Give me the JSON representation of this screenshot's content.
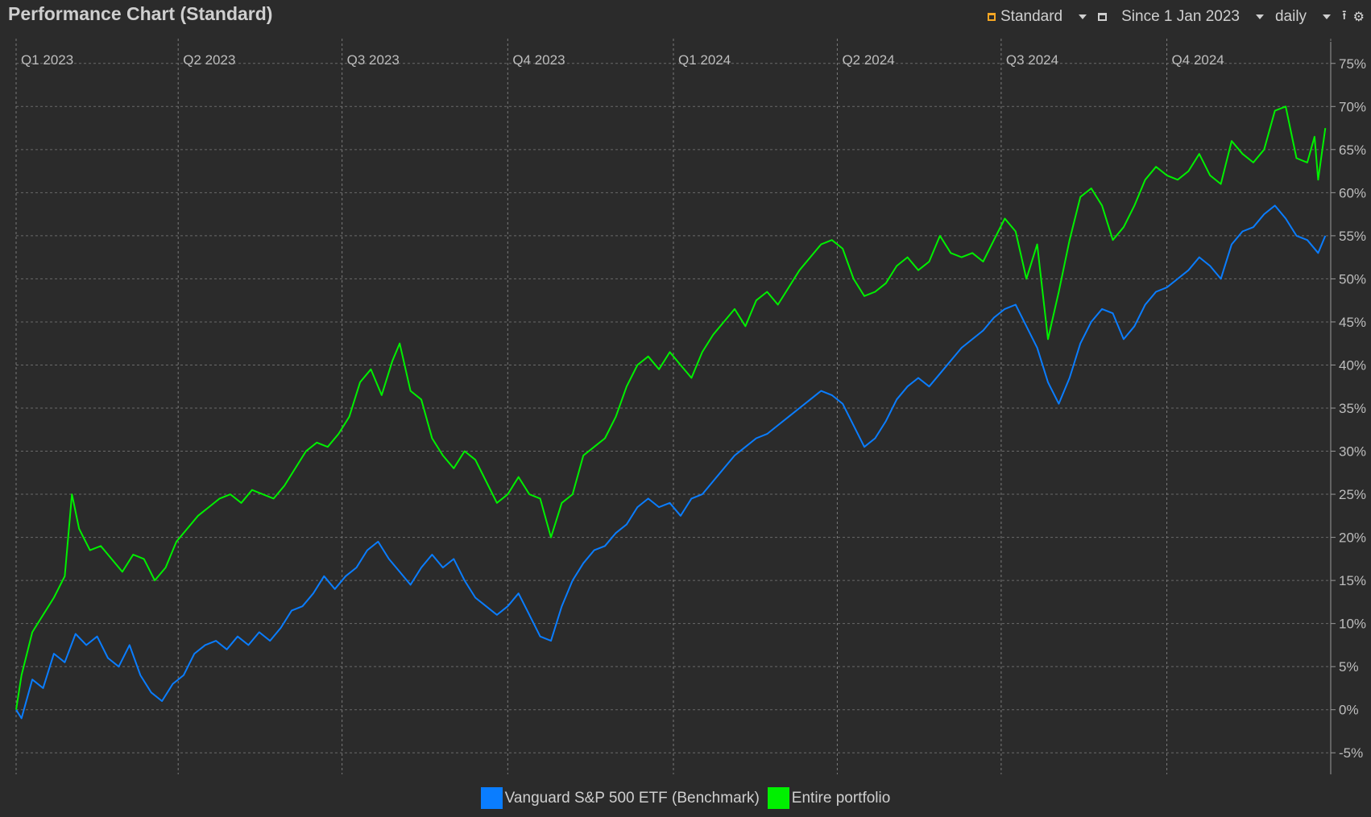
{
  "header": {
    "title": "Performance Chart (Standard)"
  },
  "toolbar": {
    "view_label": "Standard",
    "period_label": "Since 1 Jan 2023",
    "interval_label": "daily",
    "view_icon": "orange-square-icon",
    "period_icon": "calendar-icon",
    "export_icon": "export-icon",
    "settings_icon": "gear-icon"
  },
  "legend": [
    {
      "label": "Vanguard S&P 500 ETF (Benchmark)",
      "color": "#0a7dff"
    },
    {
      "label": "Entire portfolio",
      "color": "#00f000"
    }
  ],
  "chart_data": {
    "type": "line",
    "x_axis": {
      "start": "2023-01-01",
      "end": "2024-12-31",
      "ticks": [
        "Q1 2023",
        "Q2 2023",
        "Q3 2023",
        "Q4 2023",
        "Q1 2024",
        "Q2 2024",
        "Q3 2024",
        "Q4 2024"
      ],
      "tick_dates": [
        "2023-01-01",
        "2023-04-01",
        "2023-07-01",
        "2023-10-01",
        "2024-01-01",
        "2024-04-01",
        "2024-07-01",
        "2024-10-01"
      ]
    },
    "y_axis": {
      "min": -7.5,
      "max": 77.5,
      "ticks": [
        "-5%",
        "0%",
        "5%",
        "10%",
        "15%",
        "20%",
        "25%",
        "30%",
        "35%",
        "40%",
        "45%",
        "50%",
        "55%",
        "60%",
        "65%",
        "70%",
        "75%"
      ],
      "tick_values": [
        -5,
        0,
        5,
        10,
        15,
        20,
        25,
        30,
        35,
        40,
        45,
        50,
        55,
        60,
        65,
        70,
        75
      ],
      "side": "right",
      "unit": "%"
    },
    "grid": true,
    "legend_position": "bottom-center",
    "series": [
      {
        "name": "Vanguard S&P 500 ETF (Benchmark)",
        "color": "#0a7dff",
        "points": [
          [
            "2023-01-01",
            0.0
          ],
          [
            "2023-01-04",
            -1.0
          ],
          [
            "2023-01-10",
            3.5
          ],
          [
            "2023-01-16",
            2.5
          ],
          [
            "2023-01-22",
            6.5
          ],
          [
            "2023-01-28",
            5.5
          ],
          [
            "2023-02-03",
            8.8
          ],
          [
            "2023-02-09",
            7.5
          ],
          [
            "2023-02-15",
            8.5
          ],
          [
            "2023-02-21",
            6.0
          ],
          [
            "2023-02-27",
            5.0
          ],
          [
            "2023-03-05",
            7.5
          ],
          [
            "2023-03-11",
            4.0
          ],
          [
            "2023-03-17",
            2.0
          ],
          [
            "2023-03-23",
            1.0
          ],
          [
            "2023-03-29",
            3.0
          ],
          [
            "2023-04-04",
            4.0
          ],
          [
            "2023-04-10",
            6.5
          ],
          [
            "2023-04-16",
            7.5
          ],
          [
            "2023-04-22",
            8.0
          ],
          [
            "2023-04-28",
            7.0
          ],
          [
            "2023-05-04",
            8.5
          ],
          [
            "2023-05-10",
            7.5
          ],
          [
            "2023-05-16",
            9.0
          ],
          [
            "2023-05-22",
            8.0
          ],
          [
            "2023-05-28",
            9.5
          ],
          [
            "2023-06-03",
            11.5
          ],
          [
            "2023-06-09",
            12.0
          ],
          [
            "2023-06-15",
            13.5
          ],
          [
            "2023-06-21",
            15.5
          ],
          [
            "2023-06-27",
            14.0
          ],
          [
            "2023-07-03",
            15.5
          ],
          [
            "2023-07-09",
            16.5
          ],
          [
            "2023-07-15",
            18.5
          ],
          [
            "2023-07-21",
            19.5
          ],
          [
            "2023-07-27",
            17.5
          ],
          [
            "2023-08-02",
            16.0
          ],
          [
            "2023-08-08",
            14.5
          ],
          [
            "2023-08-14",
            16.5
          ],
          [
            "2023-08-20",
            18.0
          ],
          [
            "2023-08-26",
            16.5
          ],
          [
            "2023-09-01",
            17.5
          ],
          [
            "2023-09-07",
            15.0
          ],
          [
            "2023-09-13",
            13.0
          ],
          [
            "2023-09-19",
            12.0
          ],
          [
            "2023-09-25",
            11.0
          ],
          [
            "2023-10-01",
            12.0
          ],
          [
            "2023-10-07",
            13.5
          ],
          [
            "2023-10-13",
            11.0
          ],
          [
            "2023-10-19",
            8.5
          ],
          [
            "2023-10-25",
            8.0
          ],
          [
            "2023-10-31",
            12.0
          ],
          [
            "2023-11-06",
            15.0
          ],
          [
            "2023-11-12",
            17.0
          ],
          [
            "2023-11-18",
            18.5
          ],
          [
            "2023-11-24",
            19.0
          ],
          [
            "2023-11-30",
            20.5
          ],
          [
            "2023-12-06",
            21.5
          ],
          [
            "2023-12-12",
            23.5
          ],
          [
            "2023-12-18",
            24.5
          ],
          [
            "2023-12-24",
            23.5
          ],
          [
            "2023-12-30",
            24.0
          ],
          [
            "2024-01-05",
            22.5
          ],
          [
            "2024-01-11",
            24.5
          ],
          [
            "2024-01-17",
            25.0
          ],
          [
            "2024-01-23",
            26.5
          ],
          [
            "2024-01-29",
            28.0
          ],
          [
            "2024-02-04",
            29.5
          ],
          [
            "2024-02-10",
            30.5
          ],
          [
            "2024-02-16",
            31.5
          ],
          [
            "2024-02-22",
            32.0
          ],
          [
            "2024-02-28",
            33.0
          ],
          [
            "2024-03-05",
            34.0
          ],
          [
            "2024-03-11",
            35.0
          ],
          [
            "2024-03-17",
            36.0
          ],
          [
            "2024-03-23",
            37.0
          ],
          [
            "2024-03-29",
            36.5
          ],
          [
            "2024-04-04",
            35.5
          ],
          [
            "2024-04-10",
            33.0
          ],
          [
            "2024-04-16",
            30.5
          ],
          [
            "2024-04-22",
            31.5
          ],
          [
            "2024-04-28",
            33.5
          ],
          [
            "2024-05-04",
            36.0
          ],
          [
            "2024-05-10",
            37.5
          ],
          [
            "2024-05-16",
            38.5
          ],
          [
            "2024-05-22",
            37.5
          ],
          [
            "2024-05-28",
            39.0
          ],
          [
            "2024-06-03",
            40.5
          ],
          [
            "2024-06-09",
            42.0
          ],
          [
            "2024-06-15",
            43.0
          ],
          [
            "2024-06-21",
            44.0
          ],
          [
            "2024-06-27",
            45.5
          ],
          [
            "2024-07-03",
            46.5
          ],
          [
            "2024-07-09",
            47.0
          ],
          [
            "2024-07-15",
            44.5
          ],
          [
            "2024-07-21",
            42.0
          ],
          [
            "2024-07-27",
            38.0
          ],
          [
            "2024-08-02",
            35.5
          ],
          [
            "2024-08-08",
            38.5
          ],
          [
            "2024-08-14",
            42.5
          ],
          [
            "2024-08-20",
            45.0
          ],
          [
            "2024-08-26",
            46.5
          ],
          [
            "2024-09-01",
            46.0
          ],
          [
            "2024-09-07",
            43.0
          ],
          [
            "2024-09-13",
            44.5
          ],
          [
            "2024-09-19",
            47.0
          ],
          [
            "2024-09-25",
            48.5
          ],
          [
            "2024-10-01",
            49.0
          ],
          [
            "2024-10-07",
            50.0
          ],
          [
            "2024-10-13",
            51.0
          ],
          [
            "2024-10-19",
            52.5
          ],
          [
            "2024-10-25",
            51.5
          ],
          [
            "2024-10-31",
            50.0
          ],
          [
            "2024-11-06",
            54.0
          ],
          [
            "2024-11-12",
            55.5
          ],
          [
            "2024-11-18",
            56.0
          ],
          [
            "2024-11-24",
            57.5
          ],
          [
            "2024-11-30",
            58.5
          ],
          [
            "2024-12-06",
            57.0
          ],
          [
            "2024-12-12",
            55.0
          ],
          [
            "2024-12-18",
            54.5
          ],
          [
            "2024-12-24",
            53.0
          ],
          [
            "2024-12-28",
            55.0
          ]
        ]
      },
      {
        "name": "Entire portfolio",
        "color": "#00f000",
        "points": [
          [
            "2023-01-01",
            0.0
          ],
          [
            "2023-01-04",
            4.0
          ],
          [
            "2023-01-10",
            9.0
          ],
          [
            "2023-01-16",
            11.0
          ],
          [
            "2023-01-22",
            13.0
          ],
          [
            "2023-01-28",
            15.5
          ],
          [
            "2023-02-01",
            25.0
          ],
          [
            "2023-02-05",
            21.0
          ],
          [
            "2023-02-11",
            18.5
          ],
          [
            "2023-02-17",
            19.0
          ],
          [
            "2023-02-23",
            17.5
          ],
          [
            "2023-03-01",
            16.0
          ],
          [
            "2023-03-07",
            18.0
          ],
          [
            "2023-03-13",
            17.5
          ],
          [
            "2023-03-19",
            15.0
          ],
          [
            "2023-03-25",
            16.5
          ],
          [
            "2023-03-31",
            19.5
          ],
          [
            "2023-04-06",
            21.0
          ],
          [
            "2023-04-12",
            22.5
          ],
          [
            "2023-04-18",
            23.5
          ],
          [
            "2023-04-24",
            24.5
          ],
          [
            "2023-04-30",
            25.0
          ],
          [
            "2023-05-06",
            24.0
          ],
          [
            "2023-05-12",
            25.5
          ],
          [
            "2023-05-18",
            25.0
          ],
          [
            "2023-05-24",
            24.5
          ],
          [
            "2023-05-30",
            26.0
          ],
          [
            "2023-06-05",
            28.0
          ],
          [
            "2023-06-11",
            30.0
          ],
          [
            "2023-06-17",
            31.0
          ],
          [
            "2023-06-23",
            30.5
          ],
          [
            "2023-06-29",
            32.0
          ],
          [
            "2023-07-05",
            34.0
          ],
          [
            "2023-07-11",
            38.0
          ],
          [
            "2023-07-17",
            39.5
          ],
          [
            "2023-07-23",
            36.5
          ],
          [
            "2023-07-29",
            40.5
          ],
          [
            "2023-08-02",
            42.5
          ],
          [
            "2023-08-08",
            37.0
          ],
          [
            "2023-08-14",
            36.0
          ],
          [
            "2023-08-20",
            31.5
          ],
          [
            "2023-08-26",
            29.5
          ],
          [
            "2023-09-01",
            28.0
          ],
          [
            "2023-09-07",
            30.0
          ],
          [
            "2023-09-13",
            29.0
          ],
          [
            "2023-09-19",
            26.5
          ],
          [
            "2023-09-25",
            24.0
          ],
          [
            "2023-10-01",
            25.0
          ],
          [
            "2023-10-07",
            27.0
          ],
          [
            "2023-10-13",
            25.0
          ],
          [
            "2023-10-19",
            24.5
          ],
          [
            "2023-10-25",
            20.0
          ],
          [
            "2023-10-31",
            24.0
          ],
          [
            "2023-11-06",
            25.0
          ],
          [
            "2023-11-12",
            29.5
          ],
          [
            "2023-11-18",
            30.5
          ],
          [
            "2023-11-24",
            31.5
          ],
          [
            "2023-11-30",
            34.0
          ],
          [
            "2023-12-06",
            37.5
          ],
          [
            "2023-12-12",
            40.0
          ],
          [
            "2023-12-18",
            41.0
          ],
          [
            "2023-12-24",
            39.5
          ],
          [
            "2023-12-30",
            41.5
          ],
          [
            "2024-01-05",
            40.0
          ],
          [
            "2024-01-11",
            38.5
          ],
          [
            "2024-01-17",
            41.5
          ],
          [
            "2024-01-23",
            43.5
          ],
          [
            "2024-01-29",
            45.0
          ],
          [
            "2024-02-04",
            46.5
          ],
          [
            "2024-02-10",
            44.5
          ],
          [
            "2024-02-16",
            47.5
          ],
          [
            "2024-02-22",
            48.5
          ],
          [
            "2024-02-28",
            47.0
          ],
          [
            "2024-03-05",
            49.0
          ],
          [
            "2024-03-11",
            51.0
          ],
          [
            "2024-03-17",
            52.5
          ],
          [
            "2024-03-23",
            54.0
          ],
          [
            "2024-03-29",
            54.5
          ],
          [
            "2024-04-04",
            53.5
          ],
          [
            "2024-04-10",
            50.0
          ],
          [
            "2024-04-16",
            48.0
          ],
          [
            "2024-04-22",
            48.5
          ],
          [
            "2024-04-28",
            49.5
          ],
          [
            "2024-05-04",
            51.5
          ],
          [
            "2024-05-10",
            52.5
          ],
          [
            "2024-05-16",
            51.0
          ],
          [
            "2024-05-22",
            52.0
          ],
          [
            "2024-05-28",
            55.0
          ],
          [
            "2024-06-03",
            53.0
          ],
          [
            "2024-06-09",
            52.5
          ],
          [
            "2024-06-15",
            53.0
          ],
          [
            "2024-06-21",
            52.0
          ],
          [
            "2024-06-27",
            54.5
          ],
          [
            "2024-07-03",
            57.0
          ],
          [
            "2024-07-09",
            55.5
          ],
          [
            "2024-07-15",
            50.0
          ],
          [
            "2024-07-21",
            54.0
          ],
          [
            "2024-07-27",
            43.0
          ],
          [
            "2024-08-02",
            48.5
          ],
          [
            "2024-08-08",
            54.5
          ],
          [
            "2024-08-14",
            59.5
          ],
          [
            "2024-08-20",
            60.5
          ],
          [
            "2024-08-26",
            58.5
          ],
          [
            "2024-09-01",
            54.5
          ],
          [
            "2024-09-07",
            56.0
          ],
          [
            "2024-09-13",
            58.5
          ],
          [
            "2024-09-19",
            61.5
          ],
          [
            "2024-09-25",
            63.0
          ],
          [
            "2024-10-01",
            62.0
          ],
          [
            "2024-10-07",
            61.5
          ],
          [
            "2024-10-13",
            62.5
          ],
          [
            "2024-10-19",
            64.5
          ],
          [
            "2024-10-25",
            62.0
          ],
          [
            "2024-10-31",
            61.0
          ],
          [
            "2024-11-06",
            66.0
          ],
          [
            "2024-11-12",
            64.5
          ],
          [
            "2024-11-18",
            63.5
          ],
          [
            "2024-11-24",
            65.0
          ],
          [
            "2024-11-30",
            69.5
          ],
          [
            "2024-12-06",
            70.0
          ],
          [
            "2024-12-12",
            64.0
          ],
          [
            "2024-12-18",
            63.5
          ],
          [
            "2024-12-22",
            66.5
          ],
          [
            "2024-12-24",
            61.5
          ],
          [
            "2024-12-28",
            67.5
          ]
        ]
      }
    ]
  }
}
